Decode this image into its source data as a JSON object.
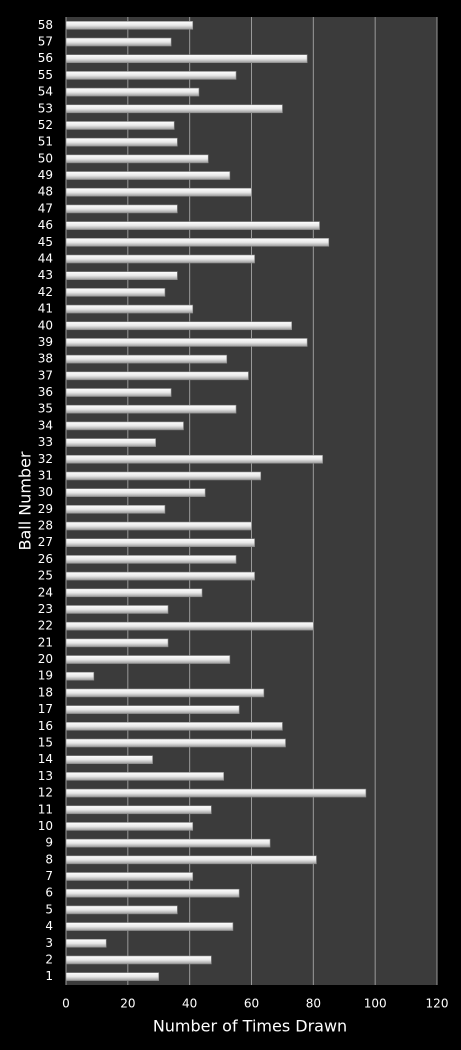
{
  "chart_data": {
    "type": "bar",
    "orientation": "horizontal",
    "xlabel": "Number of Times Drawn",
    "ylabel": "Ball Number",
    "categories": [
      "1",
      "2",
      "3",
      "4",
      "5",
      "6",
      "7",
      "8",
      "9",
      "10",
      "11",
      "12",
      "13",
      "14",
      "15",
      "16",
      "17",
      "18",
      "19",
      "20",
      "21",
      "22",
      "23",
      "24",
      "25",
      "26",
      "27",
      "28",
      "29",
      "30",
      "31",
      "32",
      "33",
      "34",
      "35",
      "36",
      "37",
      "38",
      "39",
      "40",
      "41",
      "42",
      "43",
      "44",
      "45",
      "46",
      "47",
      "48",
      "49",
      "50",
      "51",
      "52",
      "53",
      "54",
      "55",
      "56",
      "57",
      "58"
    ],
    "values": [
      30,
      47,
      13,
      54,
      36,
      56,
      41,
      81,
      66,
      41,
      47,
      97,
      51,
      28,
      71,
      70,
      56,
      64,
      9,
      53,
      33,
      80,
      33,
      44,
      61,
      55,
      61,
      60,
      32,
      45,
      63,
      83,
      29,
      38,
      55,
      34,
      59,
      52,
      78,
      73,
      41,
      32,
      36,
      61,
      85,
      82,
      36,
      60,
      53,
      46,
      36,
      35,
      70,
      43,
      55,
      78,
      34,
      41
    ],
    "color": "#f4f4f4",
    "xlim": [
      0,
      120
    ],
    "xticks": [
      0,
      20,
      40,
      60,
      80,
      100,
      120
    ],
    "grid": true
  }
}
